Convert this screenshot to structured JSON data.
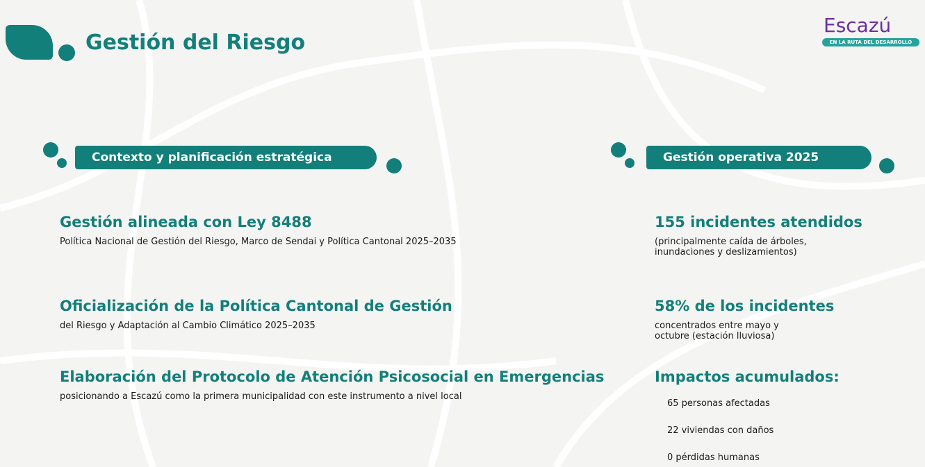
{
  "header": {
    "title": "Gestión del Riesgo",
    "brand": "Escazú",
    "tagline": "EN LA RUTA DEL DESARROLLO"
  },
  "left": {
    "heading": "Contexto y planificación estratégica",
    "items": [
      {
        "title": "Gestión alineada con Ley 8488",
        "text": "Política Nacional de Gestión del Riesgo, Marco de Sendai y Política Cantonal 2025–2035"
      },
      {
        "title": "Oficialización de la Política Cantonal de Gestión",
        "text": "del Riesgo y Adaptación al Cambio Climático 2025–2035"
      },
      {
        "title": "Elaboración del Protocolo de Atención Psicosocial en Emergencias",
        "text": "posicionando a Escazú como la primera municipalidad con este instrumento a nivel local"
      }
    ]
  },
  "right": {
    "heading": "Gestión operativa 2025",
    "items": [
      {
        "title": "155 incidentes atendidos",
        "text": "(principalmente caída de árboles, inundaciones y deslizamientos)"
      },
      {
        "title": "58% de los incidentes",
        "text": "concentrados entre mayo y octubre (estación lluviosa)"
      },
      {
        "title": "Impactos acumulados:",
        "bullets": [
          "65 personas afectadas",
          "22 viviendas con daños",
          "0 pérdidas humanas"
        ]
      }
    ]
  }
}
